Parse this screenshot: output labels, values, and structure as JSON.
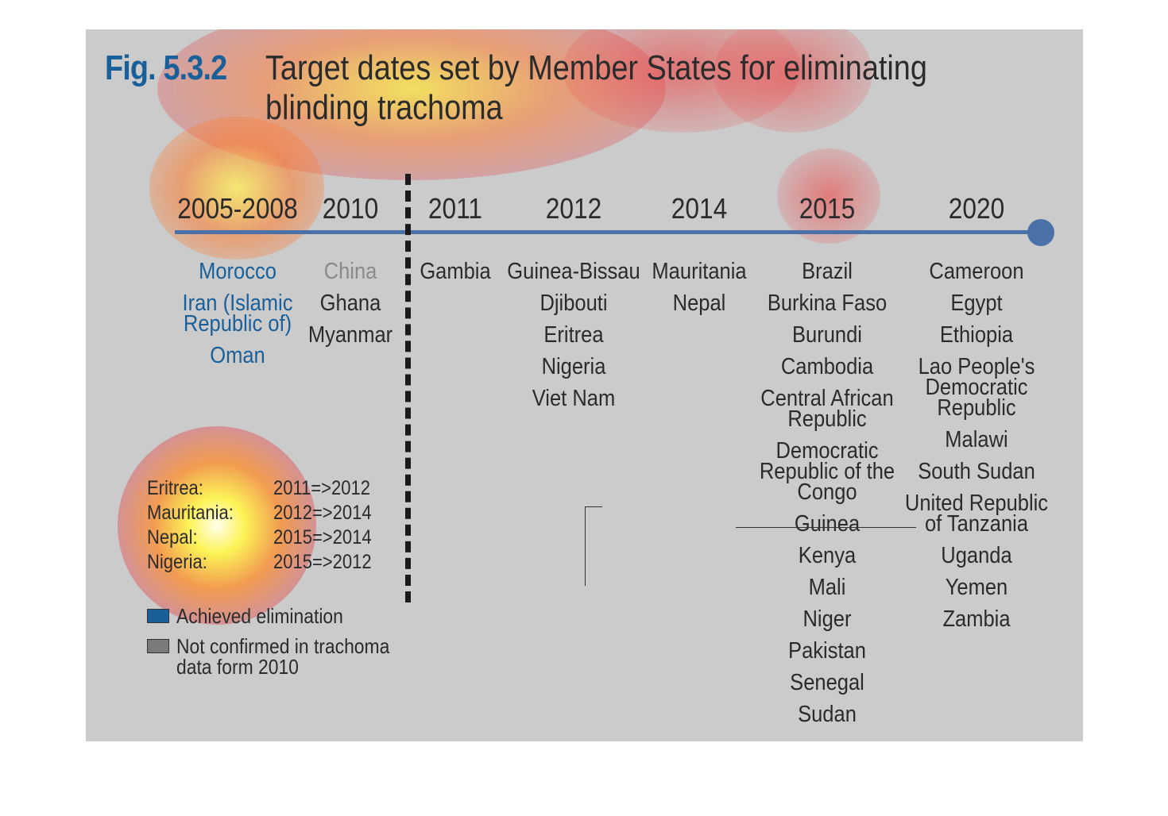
{
  "figure": {
    "label": "Fig. 5.3.2",
    "title_line1": "Target dates set by Member States for eliminating",
    "title_line2": "blinding trachoma"
  },
  "colors": {
    "background": "#cbcbcb",
    "accent_blue": "#19609a",
    "axis_blue": "#4a72a8",
    "not_confirmed_grey": "#8a8a8a",
    "text": "#2b2b2b"
  },
  "timeline": [
    {
      "year": "2005-2008",
      "countries": [
        {
          "name": "Morocco",
          "status": "achieved"
        },
        {
          "name": "Iran (Islamic\nRepublic of)",
          "status": "achieved"
        },
        {
          "name": "Oman",
          "status": "achieved"
        }
      ]
    },
    {
      "year": "2010",
      "countries": [
        {
          "name": "China",
          "status": "not_confirmed"
        },
        {
          "name": "Ghana",
          "status": "normal"
        },
        {
          "name": "Myanmar",
          "status": "normal"
        }
      ]
    },
    {
      "year": "2011",
      "countries": [
        {
          "name": "Gambia",
          "status": "normal"
        }
      ]
    },
    {
      "year": "2012",
      "countries": [
        {
          "name": "Guinea-Bissau",
          "status": "normal"
        },
        {
          "name": "Djibouti",
          "status": "normal"
        },
        {
          "name": "Eritrea",
          "status": "normal"
        },
        {
          "name": "Nigeria",
          "status": "normal"
        },
        {
          "name": "Viet Nam",
          "status": "normal"
        }
      ]
    },
    {
      "year": "2014",
      "countries": [
        {
          "name": "Mauritania",
          "status": "normal"
        },
        {
          "name": "Nepal",
          "status": "normal"
        }
      ]
    },
    {
      "year": "2015",
      "countries": [
        {
          "name": "Brazil",
          "status": "normal"
        },
        {
          "name": "Burkina Faso",
          "status": "normal"
        },
        {
          "name": "Burundi",
          "status": "normal"
        },
        {
          "name": "Cambodia",
          "status": "normal"
        },
        {
          "name": "Central African\nRepublic",
          "status": "normal"
        },
        {
          "name": "Democratic\nRepublic of the\nCongo",
          "status": "normal"
        },
        {
          "name": "Guinea",
          "status": "normal"
        },
        {
          "name": "Kenya",
          "status": "normal"
        },
        {
          "name": "Mali",
          "status": "normal"
        },
        {
          "name": "Niger",
          "status": "normal"
        },
        {
          "name": "Pakistan",
          "status": "normal"
        },
        {
          "name": "Senegal",
          "status": "normal"
        },
        {
          "name": "Sudan",
          "status": "normal"
        }
      ]
    },
    {
      "year": "2020",
      "countries": [
        {
          "name": "Cameroon",
          "status": "normal"
        },
        {
          "name": "Egypt",
          "status": "normal"
        },
        {
          "name": "Ethiopia",
          "status": "normal"
        },
        {
          "name": "Lao People's\nDemocratic\nRepublic",
          "status": "normal"
        },
        {
          "name": "Malawi",
          "status": "normal"
        },
        {
          "name": "South Sudan",
          "status": "normal"
        },
        {
          "name": "United Republic\nof Tanzania",
          "status": "normal"
        },
        {
          "name": "Uganda",
          "status": "normal"
        },
        {
          "name": "Yemen",
          "status": "normal"
        },
        {
          "name": "Zambia",
          "status": "normal"
        }
      ]
    }
  ],
  "changes": [
    {
      "country": "Eritrea:",
      "change": "2011=>2012"
    },
    {
      "country": "Mauritania:",
      "change": "2012=>2014"
    },
    {
      "country": "Nepal:",
      "change": "2015=>2014"
    },
    {
      "country": "Nigeria:",
      "change": "2015=>2012"
    }
  ],
  "legend": {
    "achieved_label": "Achieved elimination",
    "not_confirmed_label": "Not confirmed in trachoma\ndata form 2010"
  }
}
